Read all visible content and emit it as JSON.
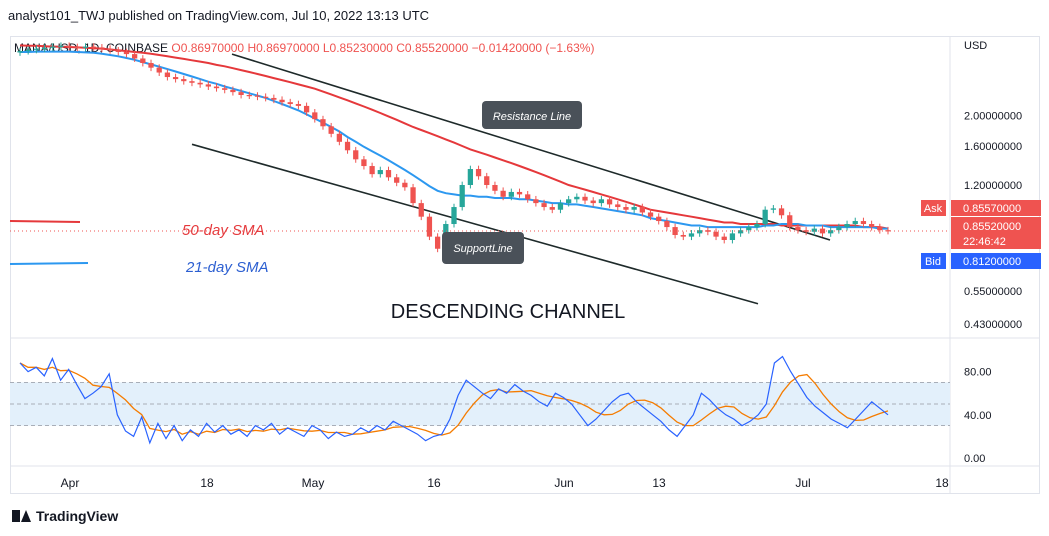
{
  "header": {
    "publish_line": "analyst101_TWJ published on TradingView.com, Jul 10, 2022 13:13 UTC"
  },
  "footer": {
    "brand": "TradingView"
  },
  "colors": {
    "up": "#26a69a",
    "down": "#ef5350",
    "sma50": "#e5383b",
    "sma21": "#2c98f0",
    "rsi": "#2962ff",
    "rsi_ma": "#f57c00",
    "channel": "#1e2a2a",
    "rsi_band": "#e3f0fb"
  },
  "chart_data": {
    "type": "candlestick",
    "ohlc_info": {
      "symbol": "MANA/USD, 1D, COINBASE",
      "o": "O0.86970000",
      "h": "H0.86970000",
      "l": "L0.85230000",
      "c": "C0.85520000",
      "chg": "−0.01420000 (−1.63%)"
    },
    "y_axis": {
      "unit_label": "USD",
      "ticks": [
        "2.00000000",
        "1.60000000",
        "1.20000000",
        "0.55000000",
        "0.43000000"
      ],
      "tick_values": [
        2.0,
        1.6,
        1.2,
        0.55,
        0.43
      ]
    },
    "x_axis": {
      "ticks": [
        "Apr",
        "18",
        "May",
        "16",
        "Jun",
        "13",
        "Jul",
        "18"
      ]
    },
    "price_tags": {
      "ask_label": "Ask",
      "ask_value": "0.85570000",
      "last_value": "0.85520000",
      "countdown": "22:46:42",
      "bid_label": "Bid",
      "bid_value": "0.81200000"
    },
    "annotations": {
      "sma50_label": "50-day SMA",
      "sma21_label": "21-day SMA",
      "resistance_label": "Resistance Line",
      "support_label": "SupportLine",
      "channel_label": "DESCENDING CHANNEL"
    },
    "closes": [
      3.22,
      3.25,
      3.28,
      3.3,
      3.33,
      3.35,
      3.32,
      3.3,
      3.33,
      3.31,
      3.28,
      3.24,
      3.2,
      3.15,
      3.05,
      2.95,
      2.85,
      2.75,
      2.66,
      2.62,
      2.58,
      2.55,
      2.52,
      2.48,
      2.45,
      2.42,
      2.38,
      2.33,
      2.32,
      2.3,
      2.28,
      2.25,
      2.21,
      2.18,
      2.15,
      2.05,
      1.95,
      1.85,
      1.75,
      1.65,
      1.55,
      1.45,
      1.38,
      1.3,
      1.34,
      1.27,
      1.22,
      1.18,
      1.05,
      0.95,
      0.82,
      0.75,
      0.9,
      1.02,
      1.2,
      1.35,
      1.28,
      1.2,
      1.15,
      1.1,
      1.14,
      1.12,
      1.08,
      1.05,
      1.02,
      1.0,
      1.05,
      1.08,
      1.1,
      1.07,
      1.05,
      1.08,
      1.04,
      1.02,
      1.0,
      1.02,
      0.98,
      0.95,
      0.92,
      0.88,
      0.83,
      0.82,
      0.84,
      0.86,
      0.85,
      0.82,
      0.8,
      0.84,
      0.86,
      0.88,
      0.9,
      1.0,
      1.01,
      0.96,
      0.88,
      0.86,
      0.85,
      0.87,
      0.84,
      0.86,
      0.88,
      0.9,
      0.92,
      0.9,
      0.88,
      0.86,
      0.855
    ],
    "sma21": [
      3.2,
      3.2,
      3.21,
      3.21,
      3.21,
      3.21,
      3.21,
      3.2,
      3.19,
      3.18,
      3.16,
      3.13,
      3.1,
      3.06,
      3.02,
      2.97,
      2.92,
      2.87,
      2.82,
      2.77,
      2.72,
      2.67,
      2.62,
      2.57,
      2.53,
      2.48,
      2.44,
      2.4,
      2.36,
      2.32,
      2.28,
      2.23,
      2.18,
      2.13,
      2.08,
      2.02,
      1.96,
      1.9,
      1.84,
      1.78,
      1.71,
      1.65,
      1.59,
      1.54,
      1.49,
      1.44,
      1.39,
      1.34,
      1.29,
      1.24,
      1.19,
      1.15,
      1.13,
      1.12,
      1.11,
      1.11,
      1.1,
      1.1,
      1.09,
      1.09,
      1.09,
      1.08,
      1.08,
      1.07,
      1.06,
      1.05,
      1.05,
      1.04,
      1.04,
      1.03,
      1.02,
      1.01,
      1.0,
      0.99,
      0.98,
      0.97,
      0.96,
      0.94,
      0.93,
      0.92,
      0.91,
      0.9,
      0.89,
      0.89,
      0.88,
      0.88,
      0.88,
      0.88,
      0.88,
      0.88,
      0.88,
      0.89,
      0.89,
      0.9,
      0.9,
      0.9,
      0.89,
      0.89,
      0.89,
      0.88,
      0.88,
      0.88,
      0.88,
      0.88,
      0.88,
      0.87,
      0.87
    ],
    "sma50": [
      3.36,
      3.35,
      3.35,
      3.34,
      3.33,
      3.33,
      3.32,
      3.31,
      3.3,
      3.29,
      3.28,
      3.26,
      3.24,
      3.22,
      3.2,
      3.18,
      3.16,
      3.13,
      3.1,
      3.07,
      3.04,
      3.01,
      2.98,
      2.95,
      2.91,
      2.88,
      2.84,
      2.8,
      2.76,
      2.72,
      2.68,
      2.64,
      2.6,
      2.56,
      2.52,
      2.48,
      2.44,
      2.39,
      2.34,
      2.29,
      2.24,
      2.19,
      2.14,
      2.09,
      2.04,
      1.99,
      1.94,
      1.89,
      1.84,
      1.8,
      1.76,
      1.72,
      1.68,
      1.64,
      1.6,
      1.56,
      1.53,
      1.5,
      1.47,
      1.44,
      1.41,
      1.38,
      1.35,
      1.32,
      1.29,
      1.26,
      1.23,
      1.2,
      1.18,
      1.16,
      1.14,
      1.12,
      1.1,
      1.08,
      1.06,
      1.04,
      1.02,
      1.0,
      0.99,
      0.98,
      0.97,
      0.96,
      0.95,
      0.94,
      0.93,
      0.92,
      0.91,
      0.91,
      0.9,
      0.9,
      0.9,
      0.9,
      0.9,
      0.89,
      0.89,
      0.89,
      0.89,
      0.89,
      0.89,
      0.89,
      0.89,
      0.89,
      0.89,
      0.88,
      0.88,
      0.88,
      0.87
    ],
    "rsi": {
      "ticks": [
        "80.00",
        "40.00",
        "0.00"
      ],
      "tick_values": [
        80,
        40,
        0
      ],
      "band": [
        30,
        70
      ],
      "values": [
        88,
        80,
        84,
        76,
        92,
        72,
        82,
        68,
        55,
        60,
        66,
        78,
        40,
        25,
        20,
        38,
        14,
        32,
        18,
        30,
        16,
        26,
        20,
        32,
        24,
        30,
        22,
        26,
        20,
        30,
        26,
        32,
        22,
        28,
        24,
        20,
        30,
        26,
        18,
        24,
        20,
        22,
        28,
        24,
        30,
        26,
        34,
        30,
        26,
        22,
        16,
        20,
        22,
        36,
        58,
        72,
        66,
        60,
        55,
        64,
        60,
        68,
        62,
        58,
        52,
        48,
        60,
        56,
        50,
        40,
        30,
        36,
        44,
        52,
        58,
        60,
        52,
        46,
        40,
        34,
        26,
        20,
        30,
        40,
        60,
        54,
        46,
        40,
        36,
        30,
        34,
        40,
        50,
        88,
        94,
        80,
        68,
        56,
        48,
        42,
        36,
        32,
        28,
        36,
        44,
        52,
        46,
        40
      ]
    }
  }
}
